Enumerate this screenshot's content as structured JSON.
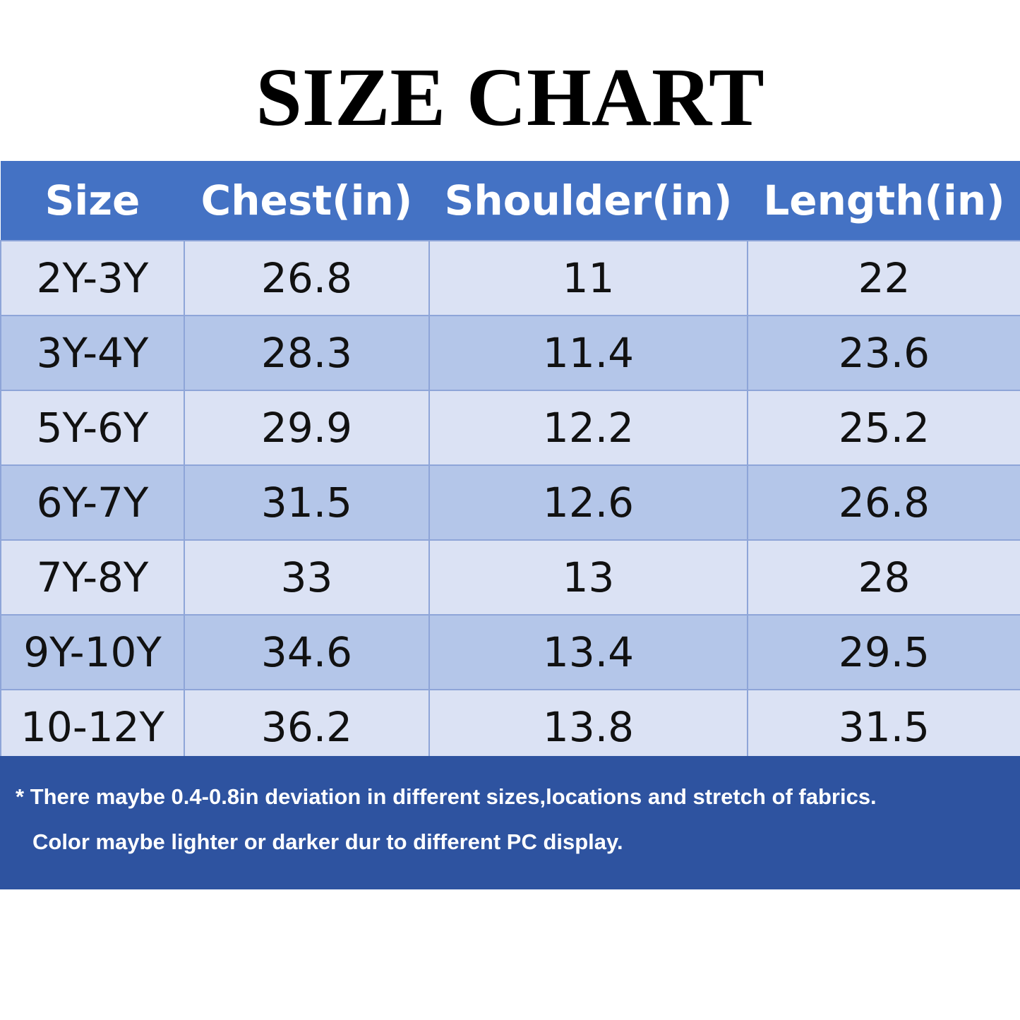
{
  "header": {
    "title": "SIZE CHART"
  },
  "table": {
    "columns": [
      "Size",
      "Chest(in)",
      "Shoulder(in)",
      "Length(in)"
    ],
    "rows": [
      [
        "2Y-3Y",
        "26.8",
        "11",
        "22"
      ],
      [
        "3Y-4Y",
        "28.3",
        "11.4",
        "23.6"
      ],
      [
        "5Y-6Y",
        "29.9",
        "12.2",
        "25.2"
      ],
      [
        "6Y-7Y",
        "31.5",
        "12.6",
        "26.8"
      ],
      [
        "7Y-8Y",
        "33",
        "13",
        "28"
      ],
      [
        "9Y-10Y",
        "34.6",
        "13.4",
        "29.5"
      ],
      [
        "10-12Y",
        "36.2",
        "13.8",
        "31.5"
      ]
    ]
  },
  "notes": [
    "* There maybe 0.4-0.8in deviation in different sizes,locations and stretch of fabrics.",
    "Color maybe lighter or darker dur to different PC display."
  ]
}
